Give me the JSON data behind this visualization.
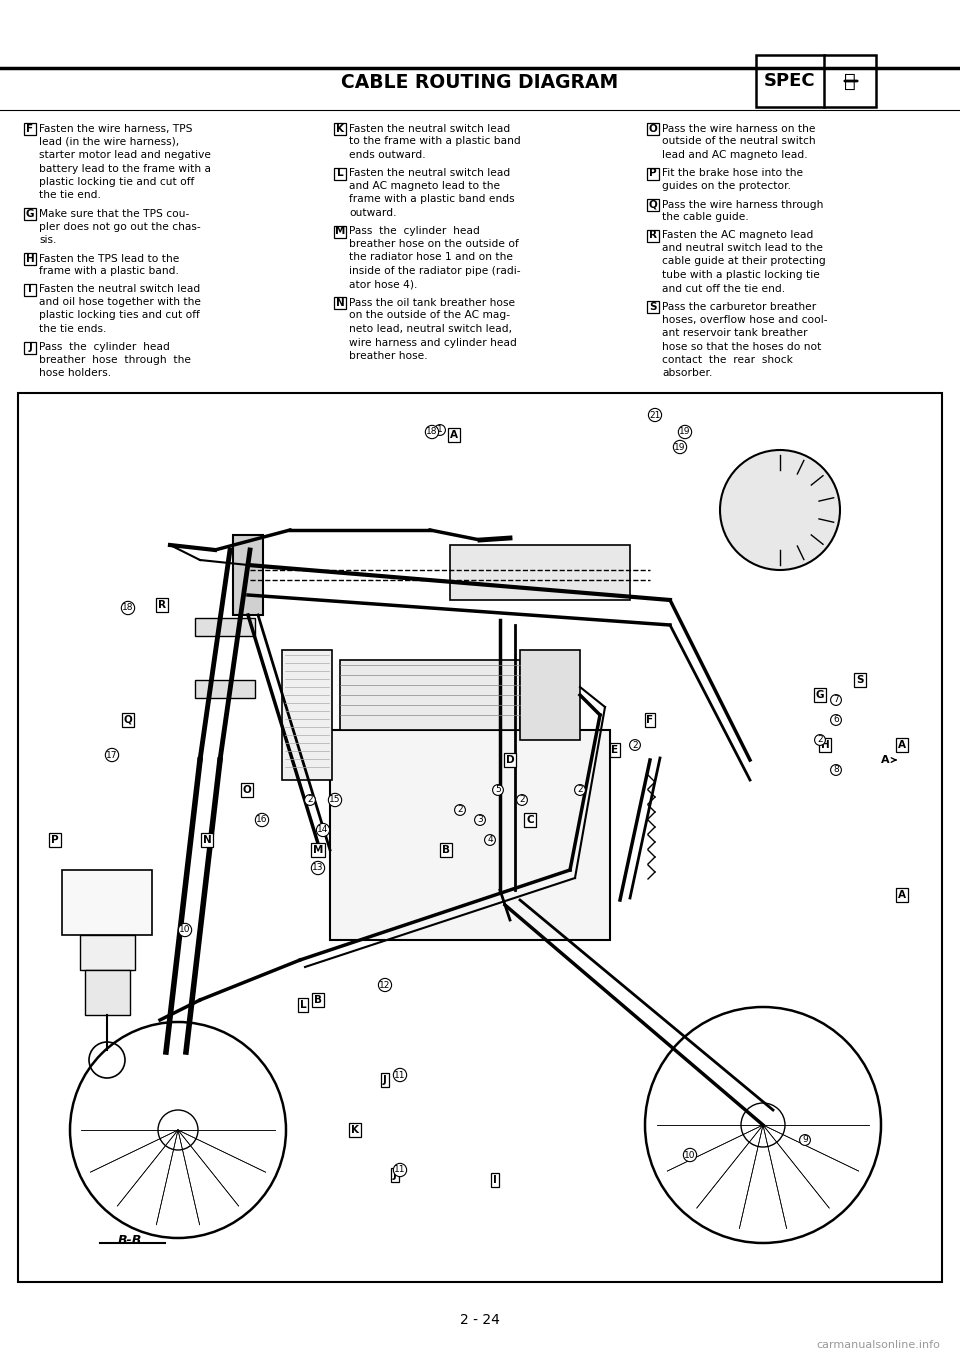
{
  "page_number": "2 - 24",
  "header_title": "CABLE ROUTING DIAGRAM",
  "spec_label": "SPEC",
  "watermark": "carmanualsonline.info",
  "bg_color": "#ffffff",
  "text_color": "#000000",
  "col1_items": [
    {
      "label": "F",
      "lines": [
        "Fasten the wire harness, TPS",
        "lead (in the wire harness),",
        "starter motor lead and negative",
        "battery lead to the frame with a",
        "plastic locking tie and cut off",
        "the tie end."
      ]
    },
    {
      "label": "G",
      "lines": [
        "Make sure that the TPS cou-",
        "pler does not go out the chas-",
        "sis."
      ]
    },
    {
      "label": "H",
      "lines": [
        "Fasten the TPS lead to the",
        "frame with a plastic band."
      ]
    },
    {
      "label": "I",
      "lines": [
        "Fasten the neutral switch lead",
        "and oil hose together with the",
        "plastic locking ties and cut off",
        "the tie ends."
      ]
    },
    {
      "label": "J",
      "lines": [
        "Pass  the  cylinder  head",
        "breather  hose  through  the",
        "hose holders."
      ]
    }
  ],
  "col2_items": [
    {
      "label": "K",
      "lines": [
        "Fasten the neutral switch lead",
        "to the frame with a plastic band",
        "ends outward."
      ]
    },
    {
      "label": "L",
      "lines": [
        "Fasten the neutral switch lead",
        "and AC magneto lead to the",
        "frame with a plastic band ends",
        "outward."
      ]
    },
    {
      "label": "M",
      "lines": [
        "Pass  the  cylinder  head",
        "breather hose on the outside of",
        "the radiator hose 1 and on the",
        "inside of the radiator pipe (radi-",
        "ator hose 4)."
      ]
    },
    {
      "label": "N",
      "lines": [
        "Pass the oil tank breather hose",
        "on the outside of the AC mag-",
        "neto lead, neutral switch lead,",
        "wire harness and cylinder head",
        "breather hose."
      ]
    }
  ],
  "col3_items": [
    {
      "label": "O",
      "lines": [
        "Pass the wire harness on the",
        "outside of the neutral switch",
        "lead and AC magneto lead."
      ]
    },
    {
      "label": "P",
      "lines": [
        "Fit the brake hose into the",
        "guides on the protector."
      ]
    },
    {
      "label": "Q",
      "lines": [
        "Pass the wire harness through",
        "the cable guide."
      ]
    },
    {
      "label": "R",
      "lines": [
        "Fasten the AC magneto lead",
        "and neutral switch lead to the",
        "cable guide at their protecting",
        "tube with a plastic locking tie",
        "and cut off the tie end."
      ]
    },
    {
      "label": "S",
      "lines": [
        "Pass the carburetor breather",
        "hoses, overflow hose and cool-",
        "ant reservoir tank breather",
        "hose so that the hoses do not",
        "contact  the  rear  shock",
        "absorber."
      ]
    }
  ]
}
